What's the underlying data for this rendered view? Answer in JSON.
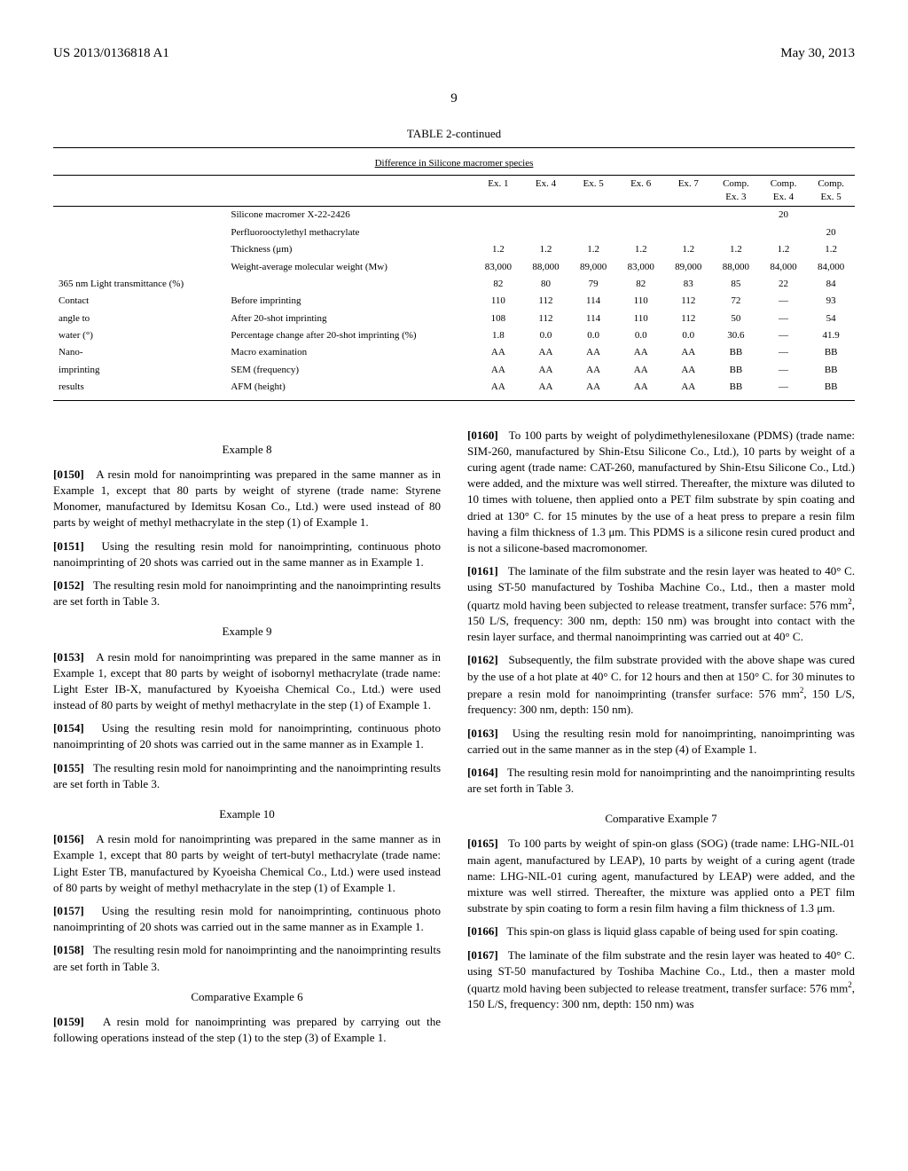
{
  "header": {
    "left": "US 2013/0136818 A1",
    "right": "May 30, 2013",
    "page_number": "9"
  },
  "table": {
    "caption": "TABLE 2-continued",
    "subtitle": "Difference in Silicone macromer species",
    "col_headers": [
      "Ex. 1",
      "Ex. 4",
      "Ex. 5",
      "Ex. 6",
      "Ex. 7",
      "Comp. Ex. 3",
      "Comp. Ex. 4",
      "Comp. Ex. 5"
    ],
    "row_groups": [
      {
        "rows": [
          {
            "label1": "",
            "label2": "Silicone macromer X-22-2426",
            "cells": [
              "",
              "",
              "",
              "",
              "",
              "",
              "20",
              ""
            ]
          },
          {
            "label1": "",
            "label2": "Perfluorooctylethyl methacrylate",
            "cells": [
              "",
              "",
              "",
              "",
              "",
              "",
              "",
              "20"
            ]
          }
        ]
      },
      {
        "rows": [
          {
            "label1": "",
            "label2": "Thickness (μm)",
            "cells": [
              "1.2",
              "1.2",
              "1.2",
              "1.2",
              "1.2",
              "1.2",
              "1.2",
              "1.2"
            ]
          },
          {
            "label1": "",
            "label2": "Weight-average molecular weight (Mw)",
            "cells": [
              "83,000",
              "88,000",
              "89,000",
              "83,000",
              "89,000",
              "88,000",
              "84,000",
              "84,000"
            ]
          }
        ]
      },
      {
        "rows": [
          {
            "label1": "365 nm Light transmittance (%)",
            "label2": "",
            "cells": [
              "82",
              "80",
              "79",
              "82",
              "83",
              "85",
              "22",
              "84"
            ]
          }
        ]
      },
      {
        "rows": [
          {
            "label1": "Contact",
            "label2": "Before imprinting",
            "cells": [
              "110",
              "112",
              "114",
              "110",
              "112",
              "72",
              "—",
              "93"
            ]
          },
          {
            "label1": "angle to",
            "label2": "After 20-shot imprinting",
            "cells": [
              "108",
              "112",
              "114",
              "110",
              "112",
              "50",
              "—",
              "54"
            ]
          },
          {
            "label1": "water (°)",
            "label2": "Percentage change after 20-shot imprinting (%)",
            "cells": [
              "1.8",
              "0.0",
              "0.0",
              "0.0",
              "0.0",
              "30.6",
              "—",
              "41.9"
            ]
          }
        ]
      },
      {
        "rows": [
          {
            "label1": "Nano-",
            "label2": "Macro examination",
            "cells": [
              "AA",
              "AA",
              "AA",
              "AA",
              "AA",
              "BB",
              "—",
              "BB"
            ]
          },
          {
            "label1": "imprinting",
            "label2": "SEM (frequency)",
            "cells": [
              "AA",
              "AA",
              "AA",
              "AA",
              "AA",
              "BB",
              "—",
              "BB"
            ]
          },
          {
            "label1": "results",
            "label2": "AFM (height)",
            "cells": [
              "AA",
              "AA",
              "AA",
              "AA",
              "AA",
              "BB",
              "—",
              "BB"
            ]
          }
        ]
      }
    ]
  },
  "left_col": {
    "ex8": {
      "heading": "Example 8",
      "p1_num": "[0150]",
      "p1": "A resin mold for nanoimprinting was prepared in the same manner as in Example 1, except that 80 parts by weight of styrene (trade name: Styrene Monomer, manufactured by Idemitsu Kosan Co., Ltd.) were used instead of 80 parts by weight of methyl methacrylate in the step (1) of Example 1.",
      "p2_num": "[0151]",
      "p2": "Using the resulting resin mold for nanoimprinting, continuous photo nanoimprinting of 20 shots was carried out in the same manner as in Example 1.",
      "p3_num": "[0152]",
      "p3": "The resulting resin mold for nanoimprinting and the nanoimprinting results are set forth in Table 3."
    },
    "ex9": {
      "heading": "Example 9",
      "p1_num": "[0153]",
      "p1": "A resin mold for nanoimprinting was prepared in the same manner as in Example 1, except that 80 parts by weight of isobornyl methacrylate (trade name: Light Ester IB-X, manufactured by Kyoeisha Chemical Co., Ltd.) were used instead of 80 parts by weight of methyl methacrylate in the step (1) of Example 1.",
      "p2_num": "[0154]",
      "p2": "Using the resulting resin mold for nanoimprinting, continuous photo nanoimprinting of 20 shots was carried out in the same manner as in Example 1.",
      "p3_num": "[0155]",
      "p3": "The resulting resin mold for nanoimprinting and the nanoimprinting results are set forth in Table 3."
    },
    "ex10": {
      "heading": "Example 10",
      "p1_num": "[0156]",
      "p1": "A resin mold for nanoimprinting was prepared in the same manner as in Example 1, except that 80 parts by weight of tert-butyl methacrylate (trade name: Light Ester TB, manufactured by Kyoeisha Chemical Co., Ltd.) were used instead of 80 parts by weight of methyl methacrylate in the step (1) of Example 1.",
      "p2_num": "[0157]",
      "p2": "Using the resulting resin mold for nanoimprinting, continuous photo nanoimprinting of 20 shots was carried out in the same manner as in Example 1.",
      "p3_num": "[0158]",
      "p3": "The resulting resin mold for nanoimprinting and the nanoimprinting results are set forth in Table 3."
    },
    "cex6": {
      "heading": "Comparative Example 6",
      "p1_num": "[0159]",
      "p1": "A resin mold for nanoimprinting was prepared by carrying out the following operations instead of the step (1) to the step (3) of Example 1."
    }
  },
  "right_col": {
    "p1_num": "[0160]",
    "p1": "To 100 parts by weight of polydimethylenesiloxane (PDMS) (trade name: SIM-260, manufactured by Shin-Etsu Silicone Co., Ltd.), 10 parts by weight of a curing agent (trade name: CAT-260, manufactured by Shin-Etsu Silicone Co., Ltd.) were added, and the mixture was well stirred. Thereafter, the mixture was diluted to 10 times with toluene, then applied onto a PET film substrate by spin coating and dried at 130° C. for 15 minutes by the use of a heat press to prepare a resin film having a film thickness of 1.3 μm. This PDMS is a silicone resin cured product and is not a silicone-based macromonomer.",
    "p2_num": "[0161]",
    "p2_pre": "The laminate of the film substrate and the resin layer was heated to 40° C. using ST-50 manufactured by Toshiba Machine Co., Ltd., then a master mold (quartz mold having been subjected to release treatment, transfer surface: 576 mm",
    "p2_post": ", 150 L/S, frequency: 300 nm, depth: 150 nm) was brought into contact with the resin layer surface, and thermal nanoimprinting was carried out at 40° C.",
    "p3_num": "[0162]",
    "p3_pre": "Subsequently, the film substrate provided with the above shape was cured by the use of a hot plate at 40° C. for 12 hours and then at 150° C. for 30 minutes to prepare a resin mold for nanoimprinting (transfer surface: 576 mm",
    "p3_post": ", 150 L/S, frequency: 300 nm, depth: 150 nm).",
    "p4_num": "[0163]",
    "p4": "Using the resulting resin mold for nanoimprinting, nanoimprinting was carried out in the same manner as in the step (4) of Example 1.",
    "p5_num": "[0164]",
    "p5": "The resulting resin mold for nanoimprinting and the nanoimprinting results are set forth in Table 3.",
    "cex7": {
      "heading": "Comparative Example 7",
      "p1_num": "[0165]",
      "p1": "To 100 parts by weight of spin-on glass (SOG) (trade name: LHG-NIL-01 main agent, manufactured by LEAP), 10 parts by weight of a curing agent (trade name: LHG-NIL-01 curing agent, manufactured by LEAP) were added, and the mixture was well stirred. Thereafter, the mixture was applied onto a PET film substrate by spin coating to form a resin film having a film thickness of 1.3 μm.",
      "p2_num": "[0166]",
      "p2": "This spin-on glass is liquid glass capable of being used for spin coating.",
      "p3_num": "[0167]",
      "p3_pre": "The laminate of the film substrate and the resin layer was heated to 40° C. using ST-50 manufactured by Toshiba Machine Co., Ltd., then a master mold (quartz mold having been subjected to release treatment, transfer surface: 576 mm",
      "p3_post": ", 150 L/S, frequency: 300 nm, depth: 150 nm) was"
    }
  }
}
